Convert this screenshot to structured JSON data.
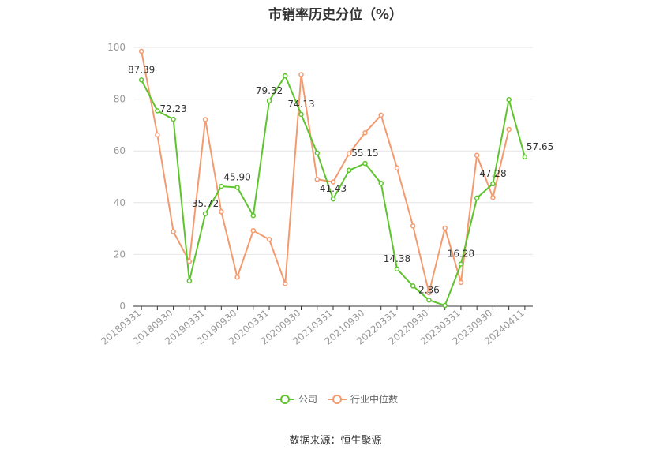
{
  "chart_data": {
    "type": "line",
    "title": "市销率历史分位（%）",
    "ylim": [
      0,
      100
    ],
    "yticks": [
      0,
      20,
      40,
      60,
      80,
      100
    ],
    "x_tick_labels": [
      "20180331",
      "20180930",
      "20190331",
      "20190930",
      "20200331",
      "20200930",
      "20210331",
      "20210930",
      "20220331",
      "20220930",
      "20230331",
      "20230930",
      "20240411"
    ],
    "x": [
      "20180331",
      "20180630",
      "20180930",
      "20181231",
      "20190331",
      "20190630",
      "20190930",
      "20191231",
      "20200331",
      "20200630",
      "20200930",
      "20201231",
      "20210331",
      "20210630",
      "20210930",
      "20211231",
      "20220331",
      "20220630",
      "20220930",
      "20221231",
      "20230331",
      "20230630",
      "20230930",
      "20231231",
      "20240411"
    ],
    "series": [
      {
        "name": "公司",
        "color": "#5ec42d",
        "values": [
          87.39,
          75.5,
          72.23,
          9.8,
          35.72,
          46.3,
          45.9,
          35.0,
          79.32,
          89.0,
          74.13,
          59.2,
          41.43,
          52.5,
          55.15,
          47.5,
          14.38,
          7.8,
          2.36,
          0.3,
          16.28,
          41.8,
          47.28,
          79.8,
          57.65
        ]
      },
      {
        "name": "行业中位数",
        "color": "#f59a6e",
        "values": [
          98.5,
          66.2,
          28.8,
          17.3,
          72.1,
          36.5,
          11.2,
          29.2,
          25.8,
          8.7,
          89.5,
          49.0,
          48.0,
          59.0,
          67.0,
          73.8,
          53.4,
          31.0,
          5.2,
          30.2,
          9.2,
          58.3,
          42.0,
          68.3,
          null
        ]
      }
    ],
    "data_labels": [
      {
        "series": 0,
        "index": 0,
        "text": "87.39"
      },
      {
        "series": 0,
        "index": 2,
        "text": "72.23"
      },
      {
        "series": 0,
        "index": 4,
        "text": "35.72"
      },
      {
        "series": 0,
        "index": 6,
        "text": "45.90"
      },
      {
        "series": 0,
        "index": 8,
        "text": "79.32"
      },
      {
        "series": 0,
        "index": 10,
        "text": "74.13"
      },
      {
        "series": 0,
        "index": 12,
        "text": "41.43"
      },
      {
        "series": 0,
        "index": 14,
        "text": "55.15"
      },
      {
        "series": 0,
        "index": 16,
        "text": "14.38"
      },
      {
        "series": 0,
        "index": 18,
        "text": "2.36"
      },
      {
        "series": 0,
        "index": 20,
        "text": "16.28"
      },
      {
        "series": 0,
        "index": 22,
        "text": "47.28"
      },
      {
        "series": 0,
        "index": 24,
        "text": "57.65"
      }
    ],
    "grid": true,
    "legend_position": "bottom-center"
  },
  "footer": {
    "source_text": "数据来源：恒生聚源"
  }
}
